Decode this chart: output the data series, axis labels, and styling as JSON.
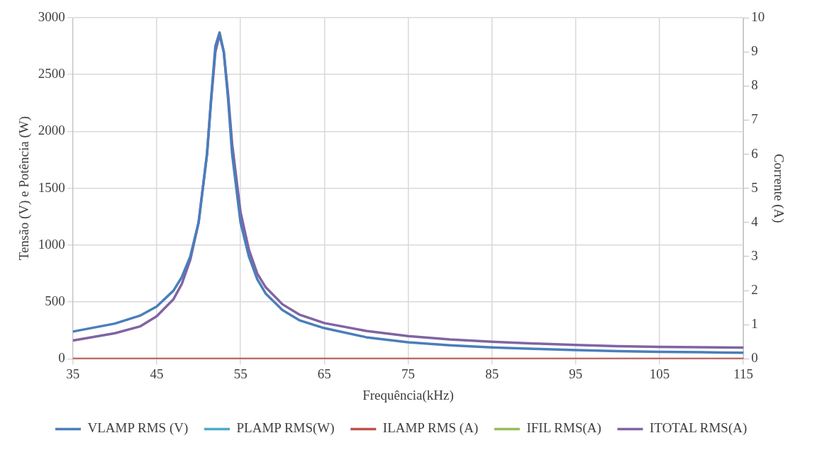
{
  "chart_data": {
    "type": "line",
    "xlabel": "Frequência(kHz)",
    "ylabel": "Tensão (V) e Potência (W)",
    "y2label": "Corrente (A)",
    "x": [
      35,
      40,
      43,
      45,
      47,
      48,
      49,
      50,
      51,
      51.5,
      52,
      52.5,
      53,
      53.5,
      54,
      55,
      56,
      57,
      58,
      60,
      62,
      65,
      70,
      75,
      80,
      85,
      90,
      95,
      100,
      105,
      110,
      115
    ],
    "xlim": [
      35,
      115
    ],
    "xticks": [
      35,
      45,
      55,
      65,
      75,
      85,
      95,
      105,
      115
    ],
    "ylim": [
      0,
      3000
    ],
    "yticks": [
      0,
      500,
      1000,
      1500,
      2000,
      2500,
      3000
    ],
    "y2lim": [
      0,
      10
    ],
    "y2ticks": [
      0,
      1,
      2,
      3,
      4,
      5,
      6,
      7,
      8,
      9,
      10
    ],
    "grid": true,
    "legend": "bottom",
    "marker": "none",
    "line_style": "solid",
    "series": [
      {
        "name": "VLAMP RMS (V)",
        "color": "#4a7ebb",
        "values": [
          240,
          310,
          380,
          460,
          600,
          720,
          900,
          1200,
          1800,
          2300,
          2750,
          2870,
          2700,
          2300,
          1800,
          1200,
          900,
          700,
          575,
          430,
          340,
          270,
          190,
          146,
          120,
          100,
          88,
          77,
          68,
          62,
          58,
          54
        ]
      },
      {
        "name": "PLAMP RMS(W)",
        "color": "#4bacc6",
        "values": [
          null,
          null,
          null,
          null,
          null,
          null,
          null,
          null,
          null,
          null,
          null,
          null,
          null,
          null,
          null,
          null,
          null,
          null,
          null,
          null,
          null,
          null,
          null,
          null,
          null,
          null,
          null,
          null,
          null,
          null,
          null,
          null
        ]
      },
      {
        "name": "ILAMP RMS (A)",
        "color": "#c0504d",
        "axis": "y2",
        "values": [
          0,
          0,
          0,
          0,
          0,
          0,
          0,
          0,
          0,
          0,
          0,
          0,
          0,
          0,
          0,
          0,
          0,
          0,
          0,
          0,
          0,
          0,
          0,
          0,
          0,
          0,
          0,
          0,
          0,
          0,
          0,
          0
        ]
      },
      {
        "name": "IFIL RMS(A)",
        "color": "#9bbb59",
        "axis": "y2",
        "values": [
          null,
          null,
          null,
          null,
          null,
          null,
          null,
          null,
          null,
          null,
          null,
          null,
          null,
          null,
          null,
          null,
          null,
          null,
          null,
          null,
          null,
          null,
          null,
          null,
          null,
          null,
          null,
          null,
          null,
          null,
          null,
          null
        ]
      },
      {
        "name": "ITOTAL RMS(A)",
        "color": "#8064a2",
        "axis": "y2",
        "values": [
          0.54,
          0.75,
          0.95,
          1.25,
          1.75,
          2.2,
          2.9,
          4.0,
          6.0,
          7.6,
          9.0,
          9.5,
          9.0,
          7.8,
          6.3,
          4.3,
          3.2,
          2.5,
          2.1,
          1.6,
          1.3,
          1.05,
          0.82,
          0.67,
          0.57,
          0.5,
          0.45,
          0.41,
          0.37,
          0.35,
          0.34,
          0.33
        ]
      }
    ]
  }
}
